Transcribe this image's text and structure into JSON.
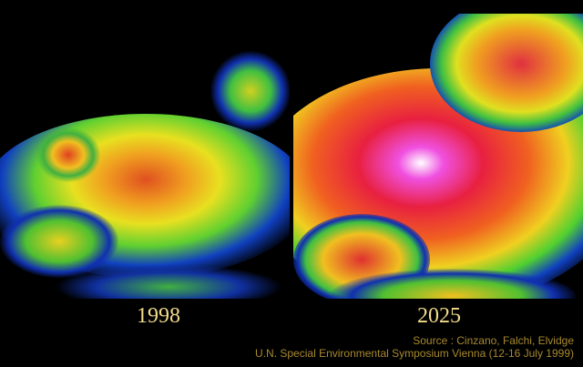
{
  "panels": [
    {
      "year": "1998",
      "intensity": "moderate"
    },
    {
      "year": "2025",
      "intensity": "high"
    }
  ],
  "source": {
    "line1": "Source : Cinzano, Falchi, Elvidge",
    "line2": "U.N. Special Environmental Symposium Vienna (12-16 July 1999)"
  },
  "colors": {
    "text_year": "#f3dc8a",
    "text_source": "#a8892e",
    "background": "#000000"
  }
}
